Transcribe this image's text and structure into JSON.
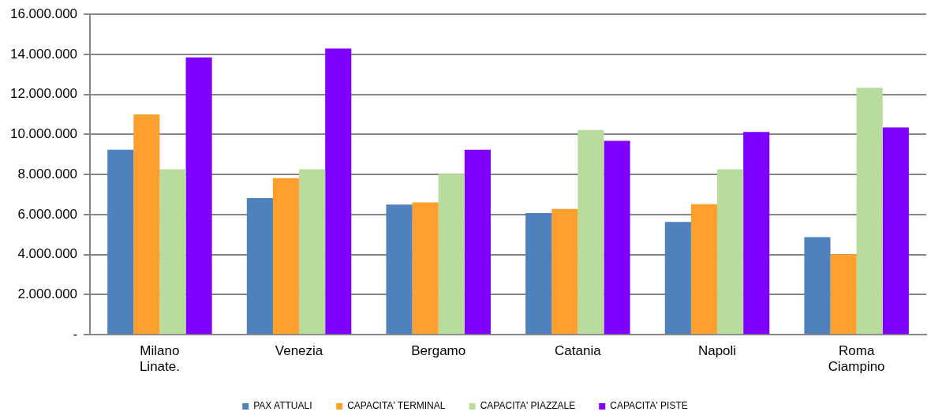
{
  "chart_data": {
    "type": "bar",
    "categories": [
      "Milano\nLinate.",
      "Venezia",
      "Bergamo",
      "Catania",
      "Napoli",
      "Roma\nCiampino"
    ],
    "series": [
      {
        "name": "PAX ATTUALI",
        "color": "#4f81bd",
        "values": [
          9240000,
          6830000,
          6500000,
          6080000,
          5630000,
          4870000
        ]
      },
      {
        "name": "CAPACITA' TERMINAL",
        "color": "#ff9f2e",
        "values": [
          11000000,
          7820000,
          6610000,
          6280000,
          6520000,
          4020000
        ]
      },
      {
        "name": "CAPACITA' PIAZZALE",
        "color": "#b8dc9c",
        "values": [
          8260000,
          8260000,
          8040000,
          10220000,
          8260000,
          12330000
        ]
      },
      {
        "name": "CAPACITA' PISTE",
        "color": "#8000ff",
        "values": [
          13850000,
          14290000,
          9240000,
          9680000,
          10130000,
          10350000
        ]
      }
    ],
    "ylim": [
      0,
      16000000
    ],
    "yticks": [
      {
        "value": 0,
        "label": "-"
      },
      {
        "value": 2000000,
        "label": "2.000.000"
      },
      {
        "value": 4000000,
        "label": "4.000.000"
      },
      {
        "value": 6000000,
        "label": "6.000.000"
      },
      {
        "value": 8000000,
        "label": "8.000.000"
      },
      {
        "value": 10000000,
        "label": "10.000.000"
      },
      {
        "value": 12000000,
        "label": "12.000.000"
      },
      {
        "value": 14000000,
        "label": "14.000.000"
      },
      {
        "value": 16000000,
        "label": "16.000.000"
      }
    ],
    "grid": "y",
    "legend": "bottom"
  }
}
